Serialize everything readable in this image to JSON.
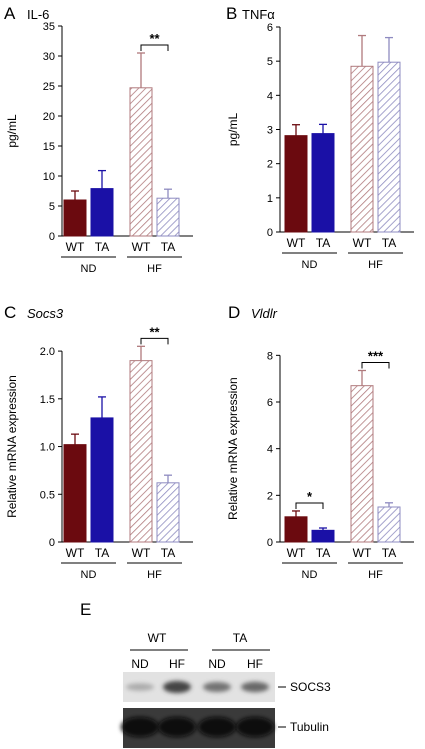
{
  "colors": {
    "nd_wt": "#6b0a0f",
    "nd_ta": "#1a10a6",
    "hf_wt_hatch": "#b07a7d",
    "hf_ta_hatch": "#8e8bc0"
  },
  "chart_data": [
    {
      "type": "bar",
      "panel": "A",
      "title": "IL-6",
      "title_italic": false,
      "ylabel": "pg/mL",
      "ylim": [
        0,
        35
      ],
      "yticks": [
        "0",
        "5",
        "10",
        "15",
        "20",
        "25",
        "30",
        "35"
      ],
      "categories": [
        "WT",
        "TA",
        "WT",
        "TA"
      ],
      "groups": [
        "ND",
        "HF"
      ],
      "values": [
        6.0,
        7.9,
        24.7,
        6.3
      ],
      "errors": [
        1.5,
        3.0,
        5.8,
        1.5
      ],
      "significance": [
        {
          "from": 2,
          "to": 3,
          "label": "**"
        }
      ]
    },
    {
      "type": "bar",
      "panel": "B",
      "title": "TNFα",
      "title_italic": false,
      "ylabel": "pg/mL",
      "ylim": [
        0,
        6
      ],
      "yticks": [
        "0",
        "1",
        "2",
        "3",
        "4",
        "5",
        "6"
      ],
      "categories": [
        "WT",
        "TA",
        "WT",
        "TA"
      ],
      "groups": [
        "ND",
        "HF"
      ],
      "values": [
        2.82,
        2.88,
        4.85,
        4.97
      ],
      "errors": [
        0.32,
        0.27,
        0.9,
        0.72
      ],
      "significance": []
    },
    {
      "type": "bar",
      "panel": "C",
      "title": "Socs3",
      "title_italic": true,
      "ylabel": "Relative mRNA expression",
      "ylim": [
        0,
        2.2
      ],
      "yticks": [
        "0",
        "0.5",
        "1.0",
        "1.5",
        "2.0"
      ],
      "categories": [
        "WT",
        "TA",
        "WT",
        "TA"
      ],
      "groups": [
        "ND",
        "HF"
      ],
      "values": [
        1.02,
        1.3,
        1.9,
        0.62
      ],
      "errors": [
        0.11,
        0.22,
        0.15,
        0.08
      ],
      "significance": [
        {
          "from": 2,
          "to": 3,
          "label": "**"
        }
      ]
    },
    {
      "type": "bar",
      "panel": "D",
      "title": "Vldlr",
      "title_italic": true,
      "ylabel": "Relative mRNA expression",
      "ylim": [
        0,
        9
      ],
      "yticks": [
        "0",
        "2",
        "4",
        "6",
        "8"
      ],
      "categories": [
        "WT",
        "TA",
        "WT",
        "TA"
      ],
      "groups": [
        "ND",
        "HF"
      ],
      "values": [
        1.08,
        0.5,
        6.7,
        1.5
      ],
      "errors": [
        0.25,
        0.1,
        0.65,
        0.18
      ],
      "significance": [
        {
          "from": 0,
          "to": 1,
          "label": "*"
        },
        {
          "from": 2,
          "to": 3,
          "label": "***"
        }
      ]
    }
  ],
  "blot": {
    "panel": "E",
    "genotypes": [
      "WT",
      "TA"
    ],
    "diets": [
      "ND",
      "HF",
      "ND",
      "HF"
    ],
    "bands": [
      "SOCS3",
      "Tubulin"
    ],
    "socs3_intensity": [
      0.2,
      0.75,
      0.5,
      0.55
    ],
    "tubulin_intensity": [
      0.95,
      0.95,
      0.95,
      0.95
    ]
  }
}
